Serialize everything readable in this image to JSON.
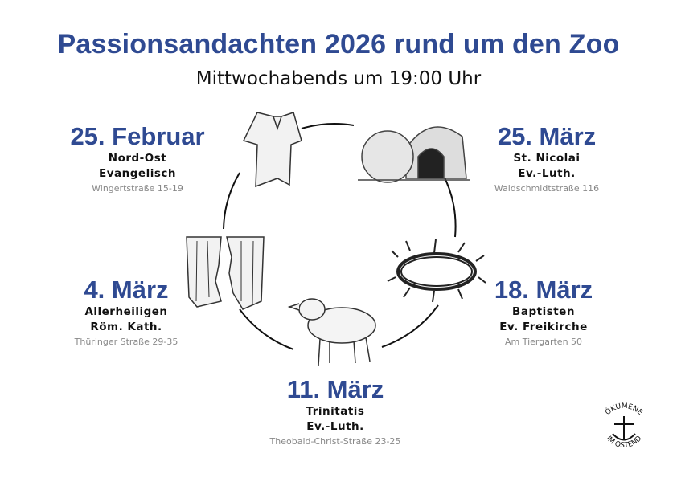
{
  "header": {
    "title": "Passionsandachten 2026 rund um den Zoo",
    "subtitle": "Mittwochabends um 19:00 Uhr"
  },
  "events": [
    {
      "date": "25. Februar",
      "church": "Nord-Ost",
      "denomination": "Evangelisch",
      "address": "Wingertstraße 15-19",
      "icon": "shirt-icon"
    },
    {
      "date": "4. März",
      "church": "Allerheiligen",
      "denomination": "Röm. Kath.",
      "address": "Thüringer Straße 29-35",
      "icon": "torn-curtain-icon"
    },
    {
      "date": "11. März",
      "church": "Trinitatis",
      "denomination": "Ev.-Luth.",
      "address": "Theobald-Christ-Straße 23-25",
      "icon": "lamb-icon"
    },
    {
      "date": "18. März",
      "church": "Baptisten",
      "denomination": "Ev. Freikirche",
      "address": "Am Tiergarten 50",
      "icon": "crown-of-thorns-icon"
    },
    {
      "date": "25. März",
      "church": "St. Nicolai",
      "denomination": "Ev.-Luth.",
      "address": "Waldschmidtstraße 116",
      "icon": "empty-tomb-icon"
    }
  ],
  "logo": {
    "text": "ÖKUMENE IM OSTEND"
  },
  "colors": {
    "accent": "#2f4a92",
    "address": "#888888"
  }
}
